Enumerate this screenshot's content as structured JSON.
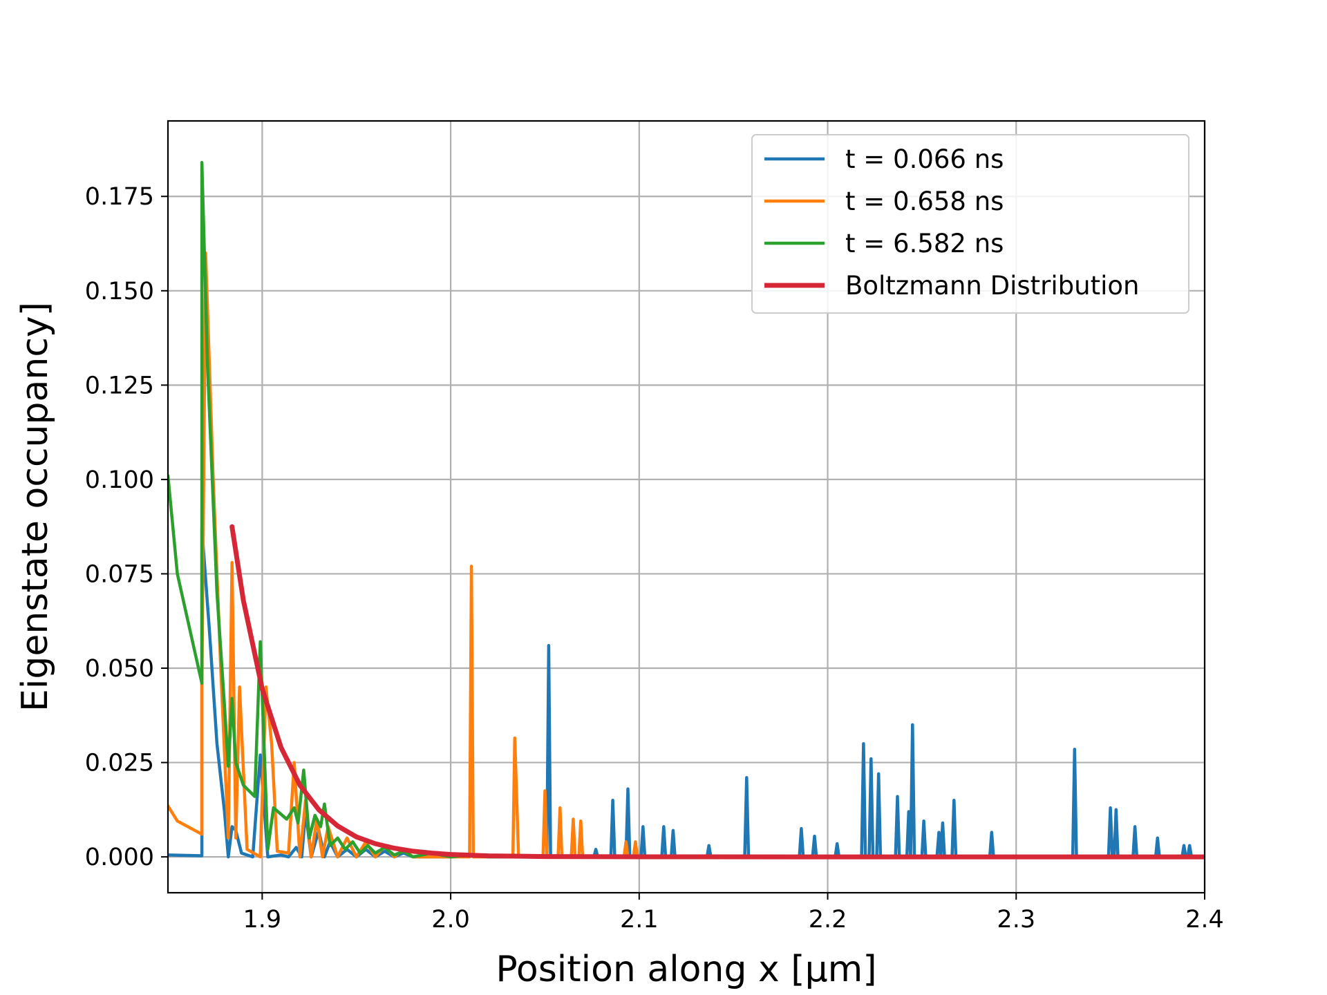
{
  "chart_data": {
    "type": "line",
    "xlabel": "Position along x [µm]",
    "ylabel": "Eigenstate occupancy]",
    "xlim": [
      1.85,
      2.4
    ],
    "ylim": [
      -0.0095,
      0.195
    ],
    "xticks": [
      1.9,
      2.0,
      2.1,
      2.2,
      2.3,
      2.4
    ],
    "xtick_labels": [
      "1.9",
      "2.0",
      "2.1",
      "2.2",
      "2.3",
      "2.4"
    ],
    "yticks": [
      0.0,
      0.025,
      0.05,
      0.075,
      0.1,
      0.125,
      0.15,
      0.175
    ],
    "ytick_labels": [
      "0.000",
      "0.025",
      "0.050",
      "0.075",
      "0.100",
      "0.125",
      "0.150",
      "0.175"
    ],
    "grid": true,
    "legend_position": "top-right",
    "series": [
      {
        "name": "t = 0.066 ns",
        "color": "#1f77b4",
        "points": [
          [
            1.85,
            0.0005
          ],
          [
            1.868,
            0.0003
          ],
          [
            1.868,
            0.087
          ],
          [
            1.872,
            0.06
          ],
          [
            1.876,
            0.03
          ],
          [
            1.88,
            0.012
          ],
          [
            1.882,
            0.0
          ],
          [
            1.884,
            0.008
          ],
          [
            1.886,
            0.007
          ],
          [
            1.889,
            0.001
          ],
          [
            1.895,
            0.0
          ],
          [
            1.899,
            0.027
          ],
          [
            1.903,
            0.0
          ],
          [
            1.91,
            0.0005
          ],
          [
            1.914,
            0.0
          ],
          [
            1.918,
            0.0025
          ],
          [
            1.921,
            0.0
          ],
          [
            1.923,
            0.012
          ],
          [
            1.926,
            0.0
          ],
          [
            1.93,
            0.007
          ],
          [
            1.933,
            0.0
          ],
          [
            1.936,
            0.004
          ],
          [
            1.94,
            0.0
          ],
          [
            1.945,
            0.002
          ],
          [
            1.95,
            0.0
          ],
          [
            1.955,
            0.002
          ],
          [
            1.96,
            0.0
          ],
          [
            1.965,
            0.0015
          ],
          [
            1.97,
            0.0
          ],
          [
            1.975,
            0.001
          ],
          [
            1.98,
            0.0
          ],
          [
            2.0,
            0.0
          ],
          [
            2.017,
            0.0005
          ],
          [
            2.05,
            0.0
          ],
          [
            2.051,
            0.0
          ],
          [
            2.052,
            0.056
          ],
          [
            2.053,
            0.0
          ],
          [
            2.055,
            0.0
          ],
          [
            2.076,
            0.0
          ],
          [
            2.077,
            0.002
          ],
          [
            2.078,
            0.0
          ],
          [
            2.085,
            0.0
          ],
          [
            2.086,
            0.015
          ],
          [
            2.087,
            0.0
          ],
          [
            2.093,
            0.0
          ],
          [
            2.094,
            0.018
          ],
          [
            2.095,
            0.0
          ],
          [
            2.101,
            0.0
          ],
          [
            2.102,
            0.008
          ],
          [
            2.103,
            0.0
          ],
          [
            2.112,
            0.0
          ],
          [
            2.113,
            0.008
          ],
          [
            2.114,
            0.0
          ],
          [
            2.117,
            0.0
          ],
          [
            2.118,
            0.007
          ],
          [
            2.119,
            0.0
          ],
          [
            2.136,
            0.0
          ],
          [
            2.137,
            0.003
          ],
          [
            2.138,
            0.0
          ],
          [
            2.156,
            0.0
          ],
          [
            2.157,
            0.021
          ],
          [
            2.158,
            0.0
          ],
          [
            2.185,
            0.0
          ],
          [
            2.186,
            0.0075
          ],
          [
            2.187,
            0.0
          ],
          [
            2.192,
            0.0
          ],
          [
            2.193,
            0.0055
          ],
          [
            2.194,
            0.0
          ],
          [
            2.204,
            0.0
          ],
          [
            2.205,
            0.0035
          ],
          [
            2.206,
            0.0
          ],
          [
            2.218,
            0.0
          ],
          [
            2.219,
            0.03
          ],
          [
            2.22,
            0.0
          ],
          [
            2.222,
            0.0
          ],
          [
            2.223,
            0.026
          ],
          [
            2.224,
            0.0
          ],
          [
            2.226,
            0.0
          ],
          [
            2.227,
            0.022
          ],
          [
            2.228,
            0.0
          ],
          [
            2.236,
            0.0
          ],
          [
            2.237,
            0.016
          ],
          [
            2.238,
            0.0
          ],
          [
            2.242,
            0.0
          ],
          [
            2.243,
            0.012
          ],
          [
            2.244,
            0.0
          ],
          [
            2.244,
            0.0
          ],
          [
            2.245,
            0.035
          ],
          [
            2.246,
            0.0
          ],
          [
            2.25,
            0.0
          ],
          [
            2.251,
            0.0095
          ],
          [
            2.252,
            0.0
          ],
          [
            2.258,
            0.0
          ],
          [
            2.259,
            0.0065
          ],
          [
            2.26,
            0.0
          ],
          [
            2.26,
            0.0
          ],
          [
            2.261,
            0.009
          ],
          [
            2.262,
            0.0
          ],
          [
            2.266,
            0.0
          ],
          [
            2.267,
            0.015
          ],
          [
            2.268,
            0.0
          ],
          [
            2.286,
            0.0
          ],
          [
            2.287,
            0.0065
          ],
          [
            2.288,
            0.0
          ],
          [
            2.33,
            0.0
          ],
          [
            2.331,
            0.0285
          ],
          [
            2.332,
            0.0
          ],
          [
            2.349,
            0.0
          ],
          [
            2.35,
            0.013
          ],
          [
            2.351,
            0.0
          ],
          [
            2.352,
            0.0
          ],
          [
            2.353,
            0.0125
          ],
          [
            2.354,
            0.0
          ],
          [
            2.362,
            0.0
          ],
          [
            2.363,
            0.008
          ],
          [
            2.364,
            0.0
          ],
          [
            2.374,
            0.0
          ],
          [
            2.375,
            0.005
          ],
          [
            2.376,
            0.0
          ],
          [
            2.388,
            0.0
          ],
          [
            2.389,
            0.003
          ],
          [
            2.39,
            0.0
          ],
          [
            2.391,
            0.0
          ],
          [
            2.392,
            0.003
          ],
          [
            2.393,
            0.0
          ],
          [
            2.4,
            0.0
          ]
        ]
      },
      {
        "name": "t = 0.658 ns",
        "color": "#ff7f0e",
        "points": [
          [
            1.85,
            0.0135
          ],
          [
            1.855,
            0.0095
          ],
          [
            1.868,
            0.006
          ],
          [
            1.868,
            0.045
          ],
          [
            1.87,
            0.16
          ],
          [
            1.874,
            0.1
          ],
          [
            1.878,
            0.05
          ],
          [
            1.882,
            0.005
          ],
          [
            1.884,
            0.078
          ],
          [
            1.886,
            0.005
          ],
          [
            1.888,
            0.045
          ],
          [
            1.892,
            0.002
          ],
          [
            1.899,
            0.0
          ],
          [
            1.902,
            0.045
          ],
          [
            1.905,
            0.03
          ],
          [
            1.908,
            0.0015
          ],
          [
            1.914,
            0.001
          ],
          [
            1.917,
            0.025
          ],
          [
            1.92,
            0.0
          ],
          [
            1.923,
            0.015
          ],
          [
            1.926,
            0.0
          ],
          [
            1.929,
            0.01
          ],
          [
            1.932,
            0.0
          ],
          [
            1.935,
            0.008
          ],
          [
            1.94,
            0.0
          ],
          [
            1.945,
            0.005
          ],
          [
            1.95,
            0.0
          ],
          [
            1.955,
            0.004
          ],
          [
            1.96,
            0.0
          ],
          [
            1.965,
            0.003
          ],
          [
            1.97,
            0.0
          ],
          [
            1.975,
            0.002
          ],
          [
            1.98,
            0.0
          ],
          [
            2.0,
            0.0
          ],
          [
            2.01,
            0.0
          ],
          [
            2.011,
            0.077
          ],
          [
            2.012,
            0.0
          ],
          [
            2.033,
            0.0
          ],
          [
            2.034,
            0.0315
          ],
          [
            2.036,
            0.0
          ],
          [
            2.049,
            0.0
          ],
          [
            2.05,
            0.0175
          ],
          [
            2.051,
            0.0
          ],
          [
            2.057,
            0.0
          ],
          [
            2.058,
            0.013
          ],
          [
            2.059,
            0.0
          ],
          [
            2.064,
            0.0
          ],
          [
            2.065,
            0.01
          ],
          [
            2.066,
            0.0
          ],
          [
            2.068,
            0.0
          ],
          [
            2.069,
            0.0095
          ],
          [
            2.07,
            0.0
          ],
          [
            2.092,
            0.0
          ],
          [
            2.093,
            0.004
          ],
          [
            2.094,
            0.0
          ],
          [
            2.097,
            0.0
          ],
          [
            2.098,
            0.004
          ],
          [
            2.099,
            0.0
          ],
          [
            2.4,
            0.0
          ]
        ]
      },
      {
        "name": "t = 6.582 ns",
        "color": "#2ca02c",
        "points": [
          [
            1.85,
            0.101
          ],
          [
            1.855,
            0.075
          ],
          [
            1.868,
            0.046
          ],
          [
            1.868,
            0.184
          ],
          [
            1.871,
            0.13
          ],
          [
            1.876,
            0.07
          ],
          [
            1.88,
            0.04
          ],
          [
            1.882,
            0.024
          ],
          [
            1.884,
            0.042
          ],
          [
            1.886,
            0.025
          ],
          [
            1.89,
            0.019
          ],
          [
            1.896,
            0.016
          ],
          [
            1.899,
            0.057
          ],
          [
            1.903,
            0.002
          ],
          [
            1.906,
            0.013
          ],
          [
            1.913,
            0.01
          ],
          [
            1.917,
            0.013
          ],
          [
            1.919,
            0.009
          ],
          [
            1.922,
            0.023
          ],
          [
            1.925,
            0.005
          ],
          [
            1.928,
            0.011
          ],
          [
            1.931,
            0.008
          ],
          [
            1.933,
            0.014
          ],
          [
            1.936,
            0.003
          ],
          [
            1.94,
            0.005
          ],
          [
            1.944,
            0.002
          ],
          [
            1.948,
            0.004
          ],
          [
            1.952,
            0.001
          ],
          [
            1.956,
            0.003
          ],
          [
            1.96,
            0.001
          ],
          [
            1.965,
            0.0025
          ],
          [
            1.97,
            0.0005
          ],
          [
            1.975,
            0.0015
          ],
          [
            1.98,
            0.0
          ],
          [
            1.99,
            0.001
          ],
          [
            2.0,
            0.0
          ],
          [
            2.01,
            0.0005
          ],
          [
            2.02,
            0.0
          ],
          [
            2.4,
            0.0
          ]
        ]
      },
      {
        "name": "Boltzmann Distribution",
        "color": "#d62737",
        "points": [
          [
            1.884,
            0.0875
          ],
          [
            1.89,
            0.068
          ],
          [
            1.9,
            0.0445
          ],
          [
            1.91,
            0.029
          ],
          [
            1.92,
            0.019
          ],
          [
            1.93,
            0.0125
          ],
          [
            1.94,
            0.0082
          ],
          [
            1.95,
            0.0053
          ],
          [
            1.96,
            0.0035
          ],
          [
            1.97,
            0.0023
          ],
          [
            1.98,
            0.0015
          ],
          [
            1.99,
            0.001
          ],
          [
            2.0,
            0.00065
          ],
          [
            2.02,
            0.00028
          ],
          [
            2.05,
            0.0001
          ],
          [
            2.1,
            2e-05
          ],
          [
            2.2,
            0.0
          ],
          [
            2.4,
            0.0
          ]
        ]
      }
    ]
  }
}
